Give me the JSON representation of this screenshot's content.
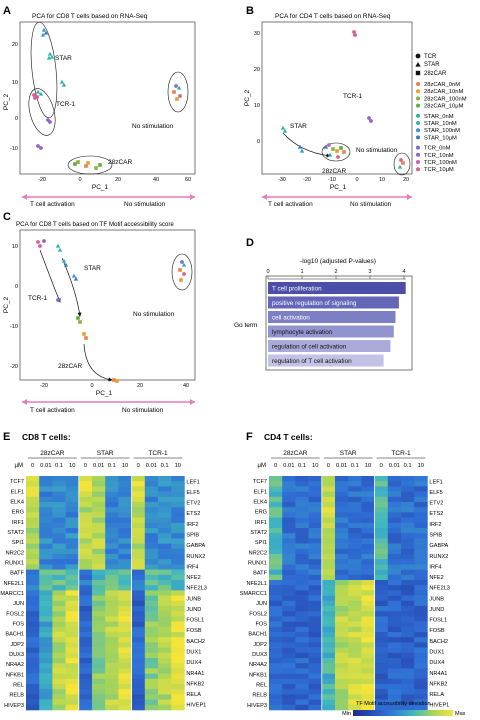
{
  "panels": {
    "A": {
      "letter": "A",
      "title": "PCA for CD8 T cells based on RNA-Seq",
      "xlabel": "PC_1",
      "ylabel": "PC_2",
      "xticks": [
        "-20",
        "0",
        "20",
        "40",
        "60"
      ],
      "yticks": [
        "20",
        "10",
        "0",
        "-10"
      ],
      "labels": {
        "star": "STAR",
        "tcr1": "TCR-1",
        "car": "28zCAR",
        "nostim": "No stimulation"
      },
      "bottom_left": "T cell activation",
      "bottom_right": "No stimulation"
    },
    "B": {
      "letter": "B",
      "title": "PCA for CD4 T cells based on RNA-Seq",
      "xlabel": "PC_1",
      "ylabel": "PC_2",
      "xticks": [
        "-30",
        "-20",
        "-10",
        "0",
        "10",
        "20"
      ],
      "yticks": [
        "30",
        "20",
        "10",
        "0"
      ],
      "labels": {
        "star": "STAR",
        "tcr1": "TCR-1",
        "car": "28zCAR",
        "nostim": "No stimulation"
      },
      "bottom_left": "T cell activation",
      "bottom_right": "No stimulation"
    },
    "C": {
      "letter": "C",
      "title": "PCA for CD8 T cells based on TF Motif accessibility score",
      "xlabel": "PC_1",
      "ylabel": "PC_2",
      "xticks": [
        "-20",
        "0",
        "20",
        "40"
      ],
      "yticks": [
        "10",
        "0",
        "-10",
        "-20"
      ],
      "labels": {
        "star": "STAR",
        "tcr1": "TCR-1",
        "car": "28zCAR",
        "nostim": "No stimulation"
      },
      "bottom_left": "T cell activation",
      "bottom_right": "No stimulation"
    },
    "D": {
      "letter": "D",
      "axis_title": "-log10 (adjusted P-values)",
      "ticks": [
        "0",
        "1",
        "2",
        "3",
        "4"
      ],
      "row_label": "Go term"
    },
    "E": {
      "letter": "E",
      "title": "CD8 T cells:"
    },
    "F": {
      "letter": "F",
      "title": "CD4 T cells:"
    }
  },
  "legend": {
    "shapes": [
      "TCR",
      "STAR",
      "28zCAR"
    ],
    "groups": [
      [
        "28zCAR_0nM",
        "28zCAR_10nM",
        "28zCAR_100nM",
        "28zCAR_10μM"
      ],
      [
        "STAR_0nM",
        "STAR_10nM",
        "STAR_100nM",
        "STAR_10μM"
      ],
      [
        "TCR_0nM",
        "TCR_10nM",
        "TCR_100nM",
        "TCR_10μM"
      ]
    ]
  },
  "colors": {
    "car0": "#e8844a",
    "car10": "#e3a02e",
    "car100": "#8bb03a",
    "car10u": "#5fae3d",
    "star0": "#2bb48f",
    "star10": "#2ab5b6",
    "star100": "#2f9bd8",
    "star10u": "#3a79c9",
    "tcr0": "#7b6fd0",
    "tcr10": "#9b5fc9",
    "tcr100": "#c55fba",
    "tcr10u": "#e05f8a",
    "arrow_pink": "#e87ab6",
    "bar": "#4c4fa8"
  },
  "go_terms": [
    {
      "term": "T cell proliferation",
      "value": 4.05
    },
    {
      "term": "positive regulation of signaling",
      "value": 3.85
    },
    {
      "term": "cell activation",
      "value": 3.75
    },
    {
      "term": "lymphocyte activation",
      "value": 3.7
    },
    {
      "term": "regulation of cell activation",
      "value": 3.6
    },
    {
      "term": "regulation of T cell activation",
      "value": 3.4
    }
  ],
  "heatmap": {
    "groups": [
      "28zCAR",
      "STAR",
      "TCR-1"
    ],
    "conc_label": "μM",
    "conc": [
      "0",
      "0.01",
      "0.1",
      "10"
    ],
    "left_tfs": [
      "TCF7",
      "ELF1",
      "ELK4",
      "ERG",
      "IRF1",
      "STAT2",
      "SPI1",
      "NR2C2",
      "RUNX1",
      "BATF",
      "NFE2L1",
      "SMARCC1",
      "JUN",
      "FOSL2",
      "FOS",
      "BACH1",
      "JDP2",
      "DUX3",
      "NR4A2",
      "NFKB1",
      "REL",
      "RELB",
      "HIVEP3"
    ],
    "right_tfs": [
      "LEF1",
      "ELF5",
      "ETV2",
      "ETS2",
      "IRF2",
      "SPIB",
      "GABPA",
      "RUNX2",
      "IRF4",
      "NFE2",
      "NFE2L3",
      "JUNB",
      "JUND",
      "FOSL1",
      "FOSB",
      "BACH2",
      "DUX1",
      "DUX4",
      "NR4A1",
      "NFKB2",
      "RELA",
      "HIVEP1"
    ],
    "legend_title": "TF Motif  accessibility deviation",
    "legend_min": "Min",
    "legend_max": "Max"
  }
}
